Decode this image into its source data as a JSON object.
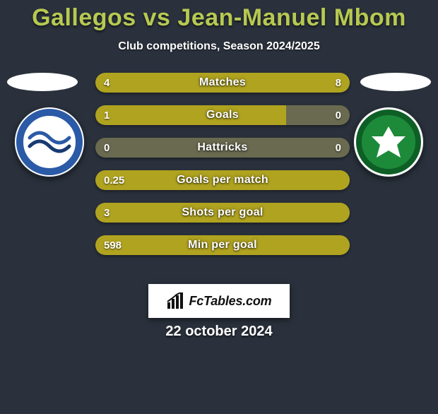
{
  "background_color": "#2a313c",
  "title": {
    "text": "Gallegos vs Jean-Manuel Mbom",
    "color": "#b7c951",
    "fontsize": 34
  },
  "subtitle": {
    "text": "Club competitions, Season 2024/2025",
    "color": "#ffffff",
    "fontsize": 16
  },
  "date": {
    "text": "22 october 2024",
    "color": "#ffffff",
    "fontsize": 20
  },
  "watermark": {
    "text": "FcTables.com",
    "text_color": "#111111",
    "bg_color": "#ffffff"
  },
  "bars": {
    "track_color": "#6a6a50",
    "left_fill_color": "#b0a31f",
    "right_fill_color": "#b0a31f",
    "label_fontsize": 16,
    "value_fontsize": 15,
    "rows": [
      {
        "label": "Matches",
        "left_text": "4",
        "right_text": "8",
        "left_pct": 38,
        "right_pct": 62
      },
      {
        "label": "Goals",
        "left_text": "1",
        "right_text": "0",
        "left_pct": 75,
        "right_pct": 0
      },
      {
        "label": "Hattricks",
        "left_text": "0",
        "right_text": "0",
        "left_pct": 0,
        "right_pct": 0
      },
      {
        "label": "Goals per match",
        "left_text": "0.25",
        "right_text": "",
        "left_pct": 100,
        "right_pct": 0
      },
      {
        "label": "Shots per goal",
        "left_text": "3",
        "right_text": "",
        "left_pct": 100,
        "right_pct": 0
      },
      {
        "label": "Min per goal",
        "left_text": "598",
        "right_text": "",
        "left_pct": 100,
        "right_pct": 0
      }
    ]
  },
  "badges": {
    "left": {
      "ring_color": "#ffffff",
      "primary": "#2b5aa6",
      "secondary": "#173a73",
      "accent": "#ffffff"
    },
    "right": {
      "ring_color": "#ffffff",
      "primary": "#1d8a3a",
      "secondary": "#0e5f25",
      "accent": "#ffffff"
    }
  }
}
